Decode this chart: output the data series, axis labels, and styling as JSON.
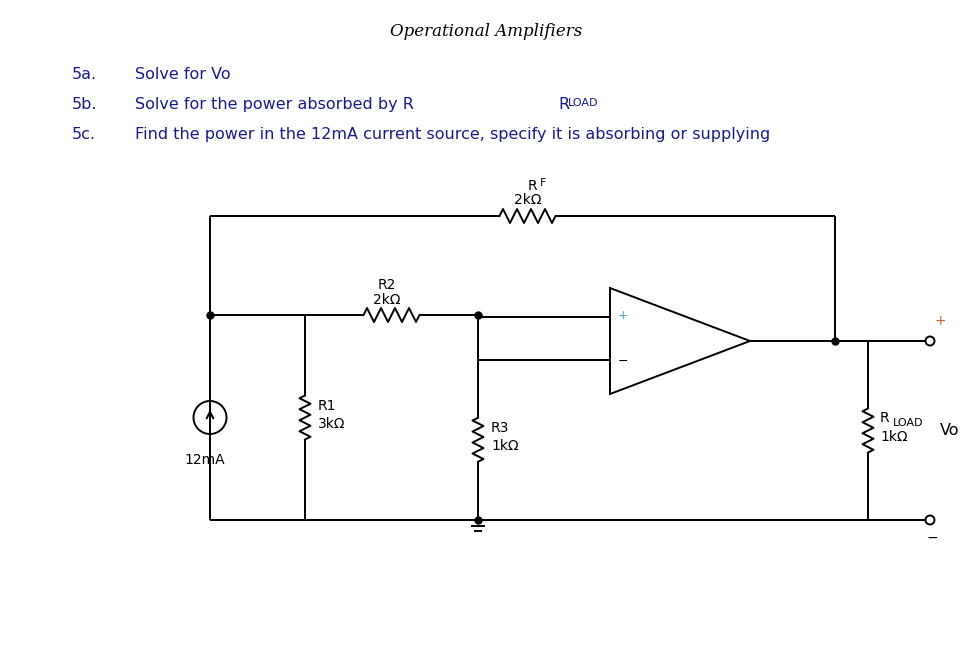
{
  "title": "Operational Amplifiers",
  "line_5a": "5a.",
  "text_5a": "Solve for Vo",
  "line_5b": "5b.",
  "text_5b_main": "Solve for the power absorbed by R",
  "text_5b_sub": "LOAD",
  "line_5c": "5c.",
  "text_5c": "Find the power in the 12mA current source, specify it is absorbing or supplying",
  "label_RF": "R",
  "label_RF_sub": "F",
  "label_RF_val": "2kΩ",
  "label_R2": "R2",
  "label_R2_val": "2kΩ",
  "label_R1": "R1",
  "label_R1_val": "3kΩ",
  "label_R3": "R3",
  "label_R3_val": "1kΩ",
  "label_RLOAD": "R",
  "label_RLOAD_sub": "LOAD",
  "label_RLOAD_val": "1kΩ",
  "label_12mA": "12mA",
  "label_Vo": "Vo",
  "bg_color": "#ffffff",
  "circuit_color": "#000000",
  "text_color": "#1a1a8c",
  "title_color": "#000000",
  "plus_color": "#4ea0c8",
  "minus_color": "#000000",
  "vo_plus_color": "#c86030",
  "vo_minus_color": "#000000"
}
